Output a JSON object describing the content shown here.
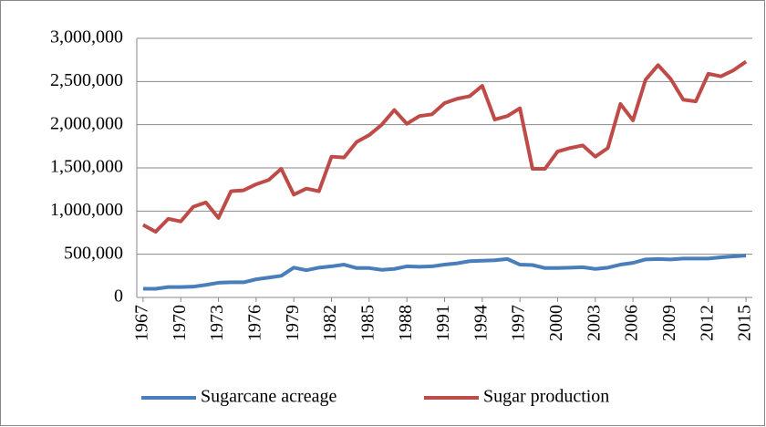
{
  "chart_data": {
    "type": "line",
    "x": [
      1967,
      1968,
      1969,
      1970,
      1971,
      1972,
      1973,
      1974,
      1975,
      1976,
      1977,
      1978,
      1979,
      1980,
      1981,
      1982,
      1983,
      1984,
      1985,
      1986,
      1987,
      1988,
      1989,
      1990,
      1991,
      1992,
      1993,
      1994,
      1995,
      1996,
      1997,
      1998,
      1999,
      2000,
      2001,
      2002,
      2003,
      2004,
      2005,
      2006,
      2007,
      2008,
      2009,
      2010,
      2011,
      2012,
      2013,
      2014,
      2015
    ],
    "series": [
      {
        "name": "Sugarcane acreage",
        "color": "#4a7ebb",
        "values": [
          100000,
          100000,
          120000,
          120000,
          125000,
          145000,
          170000,
          175000,
          175000,
          210000,
          230000,
          250000,
          345000,
          315000,
          345000,
          360000,
          380000,
          340000,
          340000,
          320000,
          330000,
          360000,
          355000,
          360000,
          380000,
          395000,
          420000,
          425000,
          430000,
          445000,
          380000,
          375000,
          340000,
          340000,
          345000,
          350000,
          330000,
          345000,
          380000,
          400000,
          440000,
          445000,
          440000,
          450000,
          450000,
          450000,
          465000,
          475000,
          485000
        ]
      },
      {
        "name": "Sugar production",
        "color": "#be4b48",
        "values": [
          840000,
          760000,
          910000,
          880000,
          1050000,
          1100000,
          920000,
          1230000,
          1240000,
          1310000,
          1360000,
          1490000,
          1190000,
          1260000,
          1230000,
          1630000,
          1620000,
          1800000,
          1880000,
          2000000,
          2170000,
          2010000,
          2100000,
          2120000,
          2250000,
          2300000,
          2330000,
          2450000,
          2060000,
          2100000,
          2190000,
          1490000,
          1490000,
          1690000,
          1730000,
          1760000,
          1630000,
          1730000,
          2240000,
          2050000,
          2520000,
          2690000,
          2530000,
          2290000,
          2270000,
          2590000,
          2560000,
          2630000,
          2730000
        ]
      }
    ],
    "xlim": [
      1966.5,
      2015.5
    ],
    "xticks": [
      1967,
      1970,
      1973,
      1976,
      1979,
      1982,
      1985,
      1988,
      1991,
      1994,
      1997,
      2000,
      2003,
      2006,
      2009,
      2012,
      2015
    ],
    "ylim": [
      0,
      3000000
    ],
    "yticks": [
      0,
      {
        "value": 500000,
        "label": "500,000"
      },
      {
        "value": 1000000,
        "label": "1,000,000"
      },
      {
        "value": 1500000,
        "label": "1,500,000"
      },
      {
        "value": 2000000,
        "label": "2,000,000"
      },
      {
        "value": 2500000,
        "label": "2,500,000"
      },
      {
        "value": 3000000,
        "label": "3,000,000"
      }
    ],
    "grid": true,
    "legend": "bottom"
  }
}
